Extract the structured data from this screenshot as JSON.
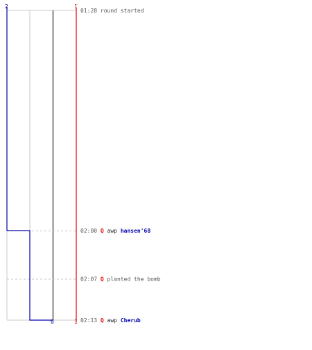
{
  "colors": {
    "blue_team": "#0000aa",
    "red_team": "#dd0000",
    "grid": "#c8c8c8",
    "center_line": "#555555",
    "event_dash": "#c8c8c8",
    "text_default": "#555555",
    "text_highlight_red": "#dd0000",
    "text_highlight_blue": "#0000aa",
    "text_dark": "#222222"
  },
  "axis": {
    "blue_top_label": "2",
    "red_top_label": "1",
    "bottom_center_label": "0",
    "red_bottom_label": "1"
  },
  "chart_data": {
    "type": "step",
    "events": [
      {
        "time": "01:28",
        "parts": [
          {
            "text": "round started",
            "role": "default"
          }
        ],
        "blue_alive": 2,
        "red_alive": 1
      },
      {
        "time": "02:00",
        "parts": [
          {
            "text": "Q",
            "role": "red"
          },
          {
            "text": " awp ",
            "role": "dark"
          },
          {
            "text": "hansen'68",
            "role": "blue"
          }
        ],
        "blue_alive": 1,
        "red_alive": 1
      },
      {
        "time": "02:07",
        "parts": [
          {
            "text": "Q",
            "role": "red"
          },
          {
            "text": " planted the bomb",
            "role": "default"
          }
        ],
        "blue_alive": 1,
        "red_alive": 1
      },
      {
        "time": "02:13",
        "parts": [
          {
            "text": "Q",
            "role": "red"
          },
          {
            "text": " awp ",
            "role": "dark"
          },
          {
            "text": "Cherub",
            "role": "blue"
          }
        ],
        "blue_alive": 0,
        "red_alive": 1
      }
    ]
  }
}
